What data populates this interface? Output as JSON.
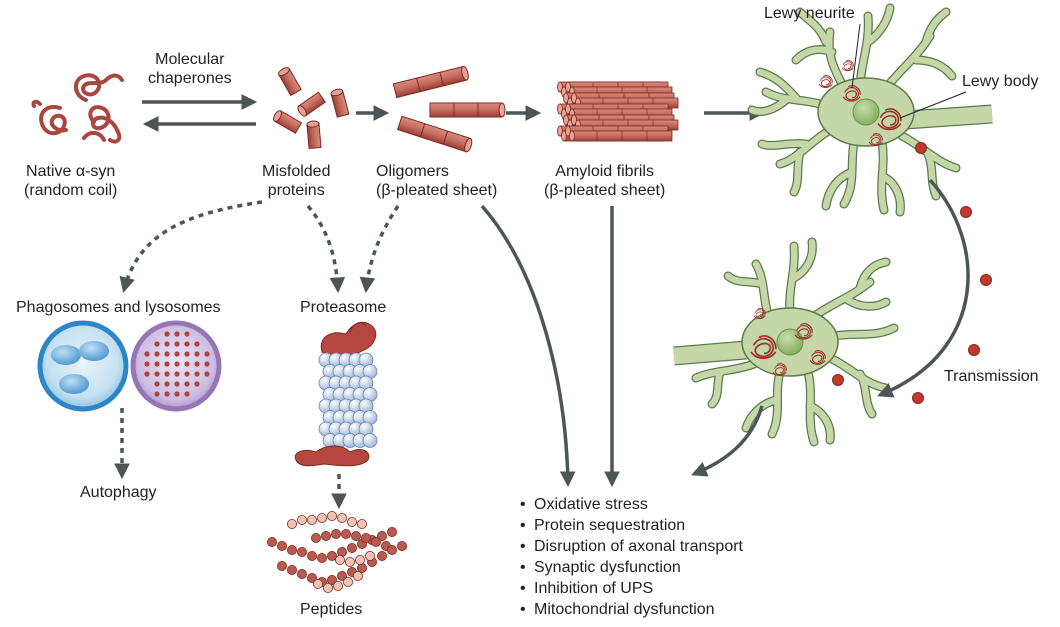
{
  "labels": {
    "molecular_chaperones": [
      "Molecular",
      "chaperones"
    ],
    "native": [
      "Native α-syn",
      "(random coil)"
    ],
    "misfolded": [
      "Misfolded",
      "proteins"
    ],
    "oligomers": [
      "Oligomers",
      "(β-pleated sheet)"
    ],
    "amyloid": [
      "Amyloid fibrils",
      "(β-pleated sheet)"
    ],
    "lewy_neurite": "Lewy neurite",
    "lewy_body": "Lewy body",
    "phagosomes": "Phagosomes and lysosomes",
    "proteasome": "Proteasome",
    "autophagy": "Autophagy",
    "peptides": "Peptides",
    "transmission": "Transmission"
  },
  "effects": [
    "Oxidative stress",
    "Protein sequestration",
    "Disruption of axonal transport",
    "Synaptic dysfunction",
    "Inhibition of UPS",
    "Mitochondrial dysfunction"
  ],
  "colors": {
    "arrow": "#4d5557",
    "protein_red": "#a8463f",
    "protein_light": "#c9665d",
    "neuron_fill": "#c5d7a8",
    "neuron_stroke": "#5c7a4a",
    "nucleus": "#8fb46d",
    "lysosome_blue": "#3b8cc7",
    "lysosome_purple": "#9c7fb8",
    "proteasome_blue": "#b9cde6",
    "bead_light": "#f0c2b4"
  }
}
